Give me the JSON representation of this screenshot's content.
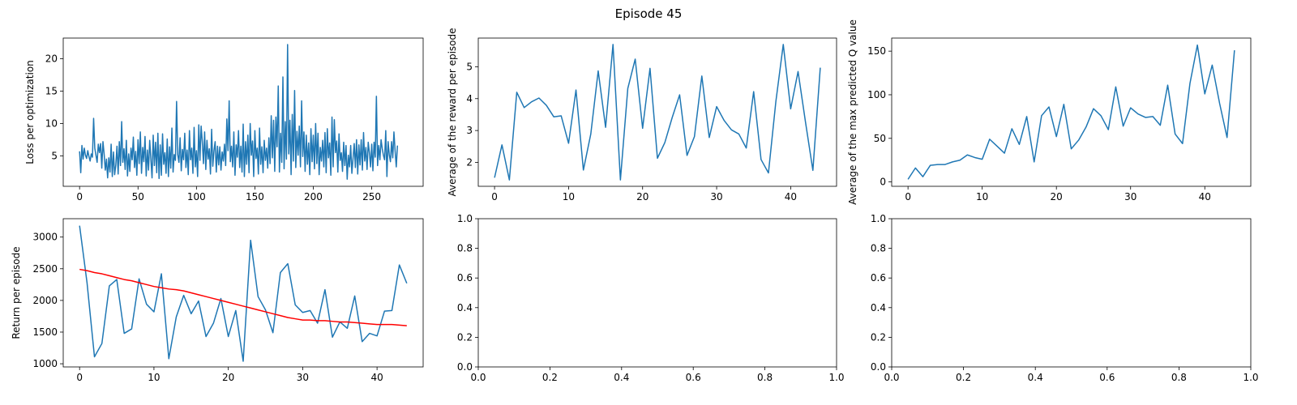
{
  "suptitle": "Episode 45",
  "chart_data": [
    {
      "type": "line",
      "title": "",
      "xlabel": "",
      "ylabel": "Loss per optimization",
      "xlim": [
        -14,
        294
      ],
      "ylim": [
        0.3,
        23.2
      ],
      "xticks": [
        0,
        50,
        100,
        150,
        200,
        250
      ],
      "yticks": [
        5,
        10,
        15,
        20
      ],
      "series": [
        {
          "color": "#1f77b4",
          "x_start": 0,
          "x_step": 1,
          "values": [
            5.7,
            2.4,
            6.6,
            4.5,
            6.2,
            5.1,
            4.6,
            5.8,
            4.9,
            4.2,
            5.3,
            4.8,
            10.8,
            6.2,
            5.1,
            4.0,
            6.8,
            5.5,
            6.9,
            3.1,
            7.2,
            5.3,
            2.8,
            4.5,
            1.6,
            4.7,
            2.5,
            6.8,
            1.8,
            5.6,
            2.1,
            3.6,
            6.5,
            2.2,
            7.2,
            3.5,
            10.3,
            4.0,
            6.1,
            2.9,
            7.4,
            1.9,
            5.3,
            2.6,
            6.2,
            4.4,
            7.9,
            3.2,
            5.7,
            2.0,
            7.5,
            3.8,
            8.7,
            2.3,
            6.3,
            4.1,
            8.0,
            1.9,
            5.9,
            2.8,
            7.4,
            4.5,
            1.6,
            8.2,
            3.5,
            7.1,
            2.4,
            8.5,
            1.5,
            6.7,
            2.0,
            8.4,
            3.7,
            5.5,
            2.3,
            7.6,
            1.8,
            6.4,
            3.1,
            9.3,
            2.5,
            5.2,
            4.3,
            13.4,
            5.2,
            4.0,
            7.8,
            2.7,
            6.0,
            4.4,
            8.5,
            3.2,
            5.9,
            2.1,
            8.9,
            4.4,
            6.2,
            2.3,
            9.4,
            3.3,
            5.8,
            1.8,
            9.8,
            4.3,
            9.6,
            7.2,
            3.8,
            8.7,
            2.9,
            7.4,
            4.5,
            6.1,
            2.2,
            9.1,
            3.4,
            5.8,
            7.2,
            2.5,
            6.5,
            3.6,
            6.4,
            2.8,
            5.6,
            4.2,
            6.8,
            3.5,
            10.7,
            5.8,
            13.5,
            4.1,
            6.5,
            3.3,
            8.7,
            2.0,
            6.7,
            4.8,
            8.9,
            3.2,
            6.5,
            2.5,
            9.9,
            1.8,
            7.2,
            3.7,
            8.2,
            2.4,
            10.0,
            5.1,
            7.3,
            1.8,
            8.9,
            4.6,
            6.2,
            2.2,
            9.3,
            3.7,
            6.4,
            2.4,
            7.4,
            4.3,
            6.2,
            3.1,
            7.8,
            3.8,
            11.2,
            4.7,
            10.5,
            2.6,
            11.0,
            6.4,
            15.8,
            2.5,
            8.5,
            4.0,
            17.2,
            3.0,
            10.3,
            4.5,
            22.2,
            5.3,
            10.5,
            2.1,
            11.4,
            4.2,
            15.1,
            3.2,
            8.8,
            5.1,
            9.6,
            3.3,
            13.5,
            4.9,
            8.7,
            2.6,
            8.2,
            3.7,
            7.0,
            2.1,
            9.2,
            4.1,
            8.2,
            3.0,
            10.0,
            3.8,
            8.5,
            2.1,
            6.3,
            4.2,
            7.4,
            3.3,
            8.6,
            2.4,
            9.2,
            4.7,
            7.0,
            2.0,
            11.0,
            3.3,
            10.6,
            5.5,
            7.3,
            2.5,
            8.4,
            4.3,
            5.5,
            2.6,
            7.1,
            3.5,
            6.6,
            1.4,
            5.1,
            3.3,
            6.6,
            2.3,
            4.6,
            6.9,
            3.2,
            7.5,
            2.2,
            6.7,
            3.6,
            7.5,
            2.8,
            8.6,
            4.2,
            6.3,
            2.9,
            7.1,
            5.5,
            3.3,
            6.8,
            2.7,
            7.1,
            4.8,
            14.2,
            3.5,
            6.6,
            4.4,
            7.5,
            6.1,
            5.1,
            4.4,
            8.9,
            1.8,
            7.2,
            5.2,
            4.1,
            7.2,
            4.7,
            8.7,
            5.8,
            3.3,
            6.6
          ]
        }
      ]
    },
    {
      "type": "line",
      "title": "",
      "xlabel": "",
      "ylabel": "Average of the reward per episode",
      "xlim": [
        -2.2,
        46.2
      ],
      "ylim": [
        1.25,
        5.9
      ],
      "xticks": [
        0,
        10,
        20,
        30,
        40
      ],
      "yticks": [
        2,
        3,
        4,
        5
      ],
      "series": [
        {
          "color": "#1f77b4",
          "x_start": 0,
          "x_step": 1,
          "values": [
            1.52,
            2.55,
            1.45,
            4.2,
            3.72,
            3.9,
            4.02,
            3.79,
            3.43,
            3.46,
            2.6,
            4.27,
            1.76,
            2.89,
            4.87,
            3.1,
            5.7,
            1.45,
            4.32,
            5.24,
            3.07,
            4.95,
            2.13,
            2.62,
            3.41,
            4.12,
            2.22,
            2.81,
            4.71,
            2.78,
            3.75,
            3.32,
            3.02,
            2.89,
            2.45,
            4.22,
            2.09,
            1.67,
            3.91,
            5.7,
            3.68,
            4.85,
            3.27,
            1.75,
            4.97
          ]
        }
      ]
    },
    {
      "type": "line",
      "title": "",
      "xlabel": "",
      "ylabel": "Average of the max predicted Q value",
      "xlim": [
        -2.2,
        46.2
      ],
      "ylim": [
        -5.0,
        165.0
      ],
      "xticks": [
        0,
        10,
        20,
        30,
        40
      ],
      "yticks": [
        0,
        50,
        100,
        150
      ],
      "series": [
        {
          "color": "#1f77b4",
          "x_start": 0,
          "x_step": 1,
          "values": [
            3,
            16,
            6,
            19,
            20,
            20,
            23,
            25,
            31,
            28,
            26,
            49,
            41,
            33,
            61,
            43,
            75,
            23,
            76,
            86,
            52,
            89,
            38,
            48,
            63,
            84,
            76,
            60,
            109,
            64,
            85,
            78,
            74,
            75,
            65,
            111,
            55,
            44,
            113,
            157,
            101,
            134,
            90,
            51,
            151
          ]
        }
      ]
    },
    {
      "type": "line",
      "title": "",
      "xlabel": "",
      "ylabel": "Return per episode",
      "xlim": [
        -2.2,
        46.2
      ],
      "ylim": [
        950,
        3290
      ],
      "xticks": [
        0,
        10,
        20,
        30,
        40
      ],
      "yticks": [
        1000,
        1500,
        2000,
        2500,
        3000
      ],
      "series": [
        {
          "color": "#1f77b4",
          "x_start": 0,
          "x_step": 1,
          "values": [
            3180,
            2280,
            1110,
            1320,
            2230,
            2330,
            1480,
            1550,
            2340,
            1940,
            1820,
            2420,
            1080,
            1740,
            2080,
            1790,
            1990,
            1430,
            1640,
            2030,
            1430,
            1840,
            1040,
            2950,
            2060,
            1850,
            1490,
            2440,
            2580,
            1930,
            1810,
            1840,
            1640,
            2170,
            1420,
            1660,
            1560,
            2070,
            1350,
            1480,
            1440,
            1830,
            1840,
            2560,
            2270
          ]
        },
        {
          "color": "#ff0000",
          "x_start": 0,
          "x_step": 1,
          "values": [
            2490,
            2470,
            2440,
            2420,
            2390,
            2360,
            2330,
            2310,
            2280,
            2250,
            2220,
            2200,
            2180,
            2170,
            2150,
            2120,
            2090,
            2060,
            2030,
            2000,
            1970,
            1940,
            1910,
            1880,
            1850,
            1820,
            1790,
            1760,
            1730,
            1710,
            1690,
            1690,
            1680,
            1680,
            1670,
            1660,
            1660,
            1650,
            1640,
            1630,
            1620,
            1620,
            1620,
            1610,
            1600
          ]
        }
      ]
    },
    {
      "type": "line",
      "title": "",
      "xlabel": "",
      "ylabel": "",
      "xlim": [
        0,
        1
      ],
      "ylim": [
        0,
        1
      ],
      "xticks": [
        0.0,
        0.2,
        0.4,
        0.6,
        0.8,
        1.0
      ],
      "yticks": [
        0.0,
        0.2,
        0.4,
        0.6,
        0.8,
        1.0
      ],
      "series": []
    },
    {
      "type": "line",
      "title": "",
      "xlabel": "",
      "ylabel": "",
      "xlim": [
        0,
        1
      ],
      "ylim": [
        0,
        1
      ],
      "xticks": [
        0.0,
        0.2,
        0.4,
        0.6,
        0.8,
        1.0
      ],
      "yticks": [
        0.0,
        0.2,
        0.4,
        0.6,
        0.8,
        1.0
      ],
      "series": []
    }
  ]
}
